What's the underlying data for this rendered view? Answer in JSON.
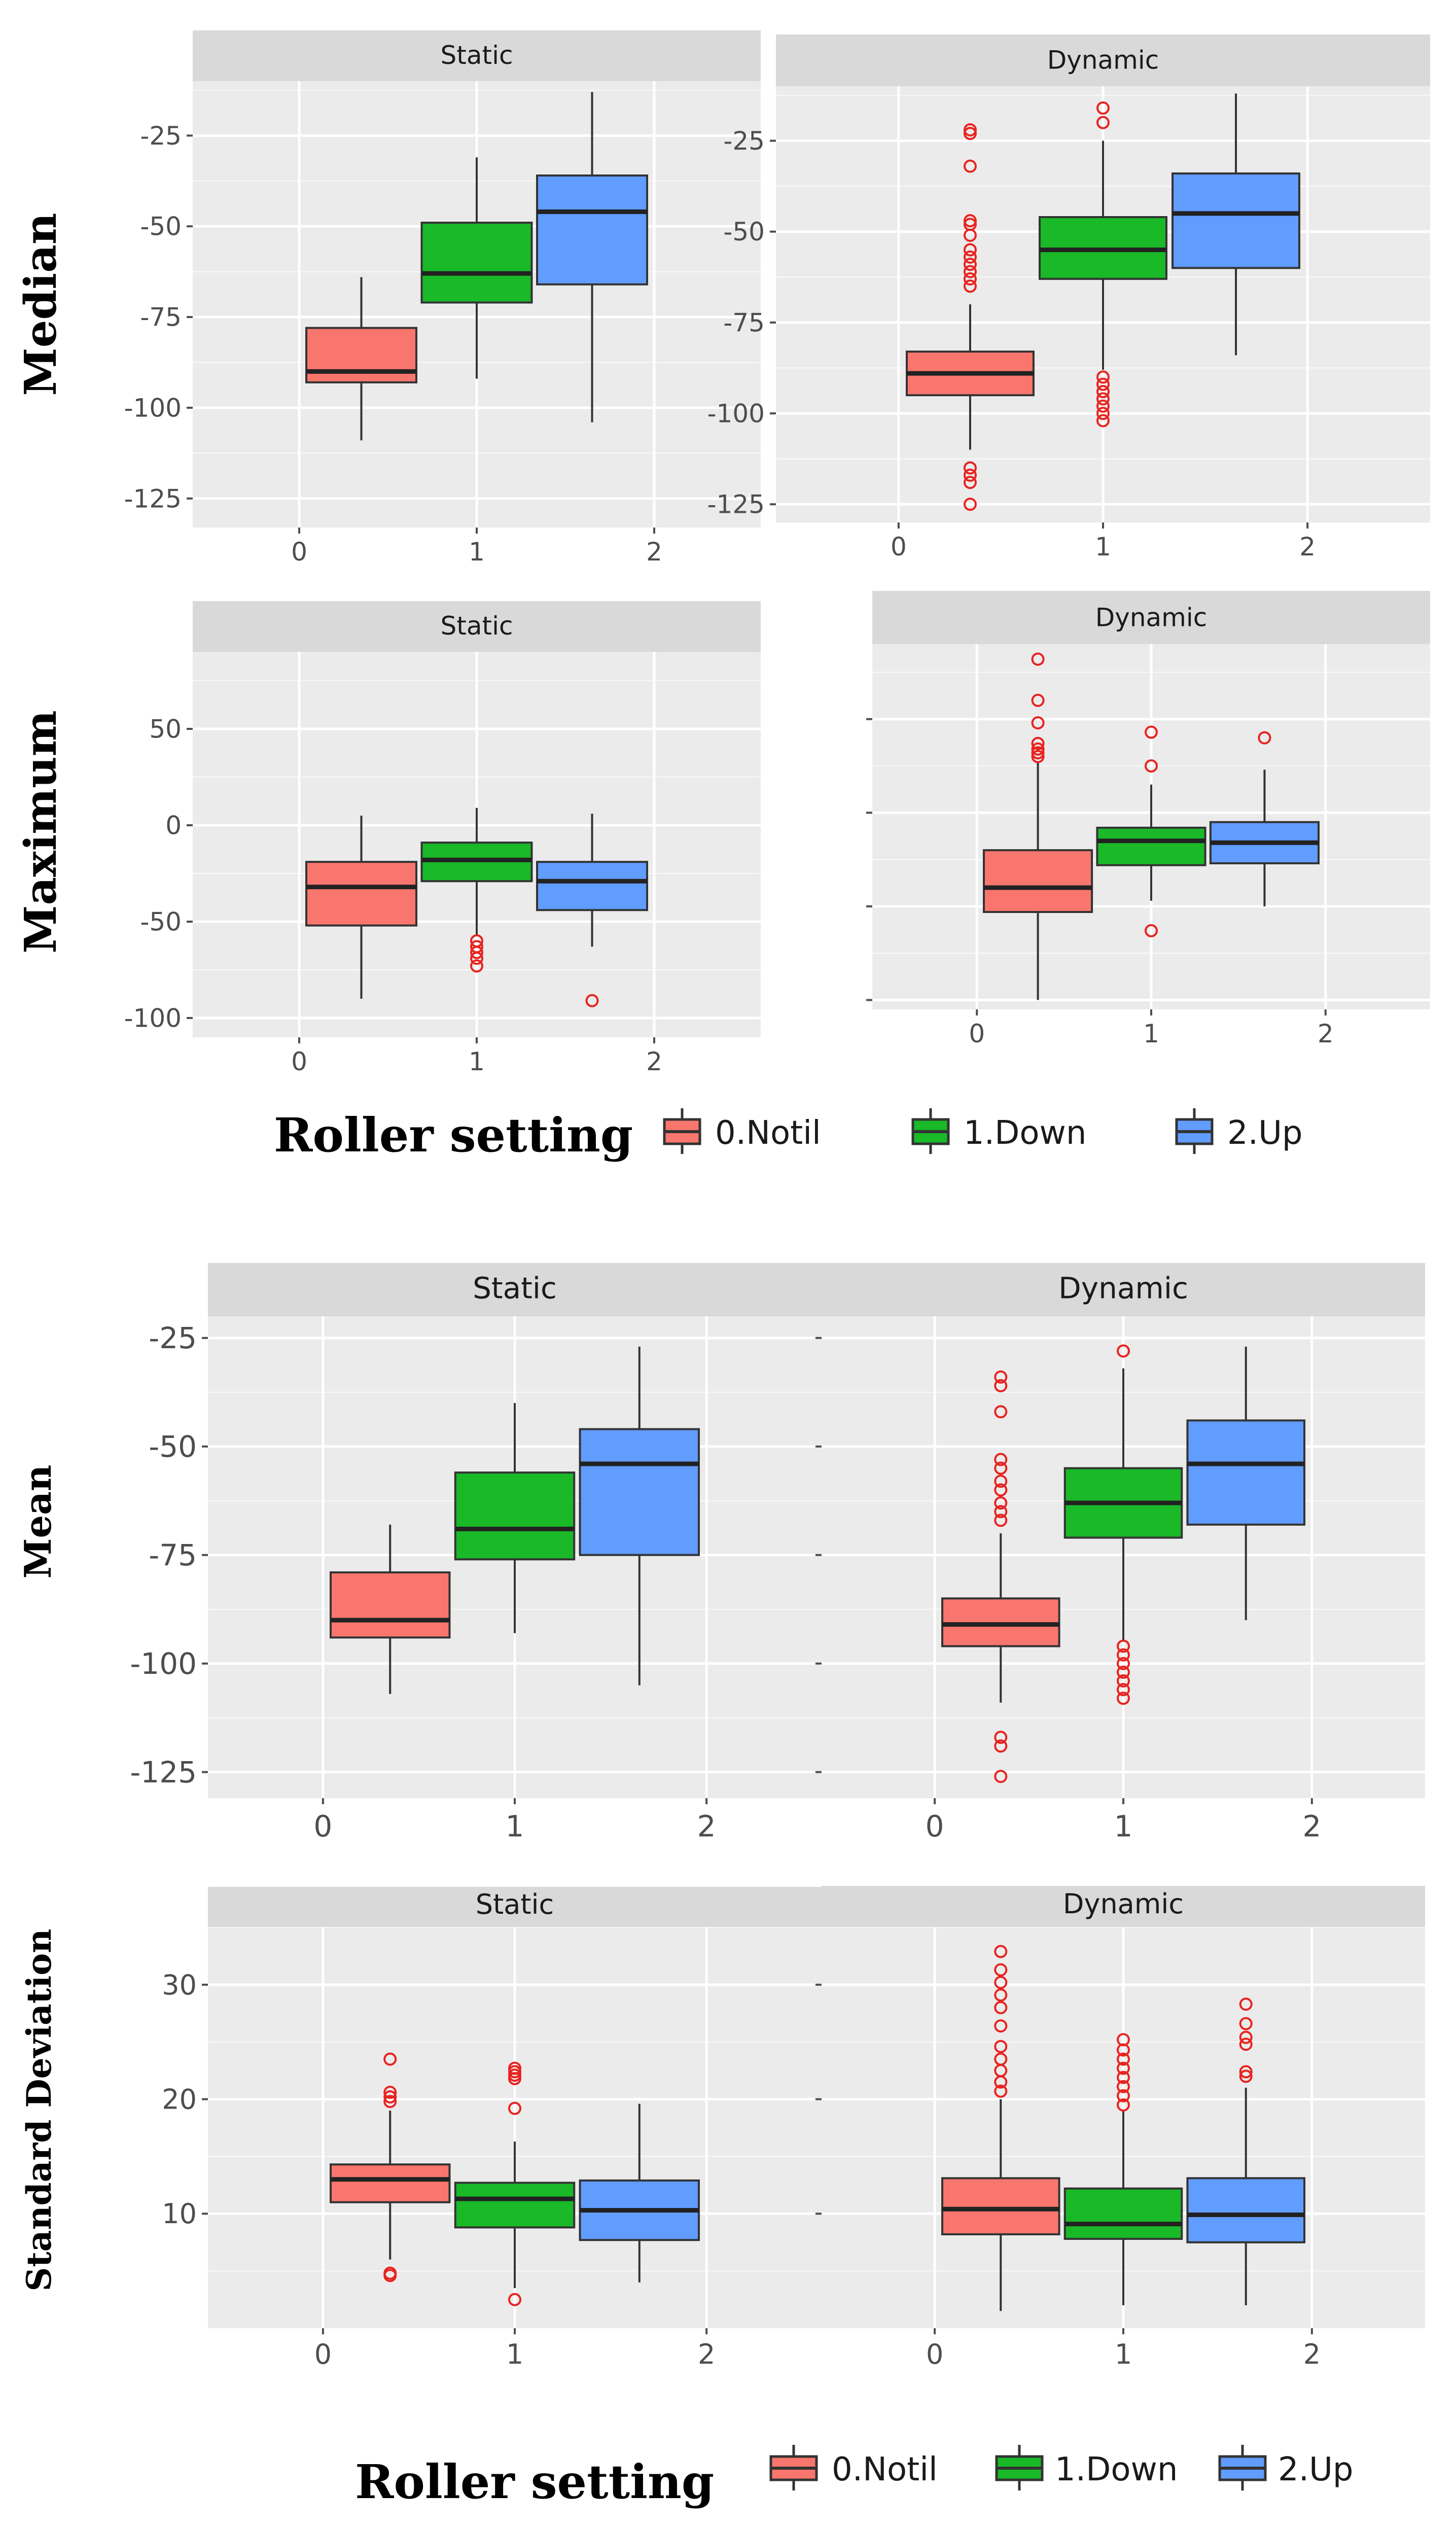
{
  "colors": {
    "panel_bg": "#ebebeb",
    "strip_bg": "#d9d9d9",
    "grid": "#ffffff",
    "outlier": "#e8231f",
    "box_outline": "#333333",
    "series": [
      "#f8766d",
      "#19b927",
      "#619cff"
    ]
  },
  "legend": {
    "title": "Roller setting",
    "entries": [
      "0.Notil",
      "1.Down",
      "2.Up"
    ]
  },
  "chart_data": [
    {
      "type": "boxplot",
      "ylabel": "Median",
      "facet": "Static",
      "x_ticks": [
        0,
        1,
        2
      ],
      "xlim": [
        -0.6,
        2.6
      ],
      "ylim": [
        -133,
        -10
      ],
      "y_ticks": [
        -25,
        -50,
        -75,
        -100,
        -125
      ],
      "y_tick_labels": true,
      "boxes": [
        {
          "x": 0.35,
          "min": -109,
          "q1": -93,
          "median": -90,
          "q3": -78,
          "max": -64,
          "outliers": []
        },
        {
          "x": 1.0,
          "min": -92,
          "q1": -71,
          "median": -63,
          "q3": -49,
          "max": -31,
          "outliers": []
        },
        {
          "x": 1.65,
          "min": -104,
          "q1": -66,
          "median": -46,
          "q3": -36,
          "max": -13,
          "outliers": []
        }
      ]
    },
    {
      "type": "boxplot",
      "ylabel": "Median",
      "facet": "Dynamic",
      "x_ticks": [
        0,
        1,
        2
      ],
      "xlim": [
        -0.6,
        2.6
      ],
      "ylim": [
        -130,
        -10
      ],
      "y_ticks": [
        -25,
        -50,
        -75,
        -100,
        -125
      ],
      "y_tick_labels": true,
      "boxes": [
        {
          "x": 0.35,
          "min": -110,
          "q1": -95,
          "median": -89,
          "q3": -83,
          "max": -70,
          "outliers": [
            -22,
            -23,
            -32,
            -47,
            -48,
            -51,
            -55,
            -57,
            -59,
            -61,
            -63,
            -65,
            -115,
            -117,
            -119,
            -125
          ]
        },
        {
          "x": 1.0,
          "min": -88,
          "q1": -63,
          "median": -55,
          "q3": -46,
          "max": -25,
          "outliers": [
            -16,
            -20,
            -90,
            -92,
            -94,
            -96,
            -98,
            -100,
            -102
          ]
        },
        {
          "x": 1.65,
          "min": -84,
          "q1": -60,
          "median": -45,
          "q3": -34,
          "max": -12,
          "outliers": []
        }
      ]
    },
    {
      "type": "boxplot",
      "ylabel": "Maximum",
      "facet": "Static",
      "x_ticks": [
        0,
        1,
        2
      ],
      "xlim": [
        -0.6,
        2.6
      ],
      "ylim": [
        -110,
        90
      ],
      "y_ticks": [
        50,
        0,
        -50,
        -100
      ],
      "y_tick_labels": true,
      "boxes": [
        {
          "x": 0.35,
          "min": -90,
          "q1": -52,
          "median": -32,
          "q3": -19,
          "max": 5,
          "outliers": []
        },
        {
          "x": 1.0,
          "min": -57,
          "q1": -29,
          "median": -18,
          "q3": -9,
          "max": 9,
          "outliers": [
            -60,
            -63,
            -66,
            -69,
            -73
          ]
        },
        {
          "x": 1.65,
          "min": -63,
          "q1": -44,
          "median": -29,
          "q3": -19,
          "max": 6,
          "outliers": [
            -91
          ]
        }
      ]
    },
    {
      "type": "boxplot",
      "ylabel": "Maximum",
      "facet": "Dynamic",
      "x_ticks": [
        0,
        1,
        2
      ],
      "xlim": [
        -0.6,
        2.6
      ],
      "ylim": [
        -105,
        90
      ],
      "y_ticks": [
        50,
        0,
        -50,
        -100
      ],
      "y_tick_labels": false,
      "boxes": [
        {
          "x": 0.35,
          "min": -100,
          "q1": -53,
          "median": -40,
          "q3": -20,
          "max": 27,
          "outliers": [
            30,
            32,
            34,
            37,
            48,
            60,
            82
          ]
        },
        {
          "x": 1.0,
          "min": -47,
          "q1": -28,
          "median": -15,
          "q3": -8,
          "max": 15,
          "outliers": [
            25,
            43,
            -63
          ]
        },
        {
          "x": 1.65,
          "min": -50,
          "q1": -27,
          "median": -16,
          "q3": -5,
          "max": 23,
          "outliers": [
            40
          ]
        }
      ]
    },
    {
      "type": "boxplot",
      "ylabel": "Mean",
      "facet": "Static",
      "x_ticks": [
        0,
        1,
        2
      ],
      "xlim": [
        -0.6,
        2.6
      ],
      "ylim": [
        -131,
        -20
      ],
      "y_ticks": [
        -25,
        -50,
        -75,
        -100,
        -125
      ],
      "y_tick_labels": true,
      "boxes": [
        {
          "x": 0.35,
          "min": -107,
          "q1": -94,
          "median": -90,
          "q3": -79,
          "max": -68,
          "outliers": []
        },
        {
          "x": 1.0,
          "min": -93,
          "q1": -76,
          "median": -69,
          "q3": -56,
          "max": -40,
          "outliers": []
        },
        {
          "x": 1.65,
          "min": -105,
          "q1": -75,
          "median": -54,
          "q3": -46,
          "max": -27,
          "outliers": []
        }
      ]
    },
    {
      "type": "boxplot",
      "ylabel": "Mean",
      "facet": "Dynamic",
      "x_ticks": [
        0,
        1,
        2
      ],
      "xlim": [
        -0.6,
        2.6
      ],
      "ylim": [
        -131,
        -20
      ],
      "y_ticks": [
        -25,
        -50,
        -75,
        -100,
        -125
      ],
      "y_tick_labels": false,
      "boxes": [
        {
          "x": 0.35,
          "min": -109,
          "q1": -96,
          "median": -91,
          "q3": -85,
          "max": -70,
          "outliers": [
            -34,
            -36,
            -42,
            -53,
            -55,
            -58,
            -60,
            -63,
            -65,
            -67,
            -117,
            -119,
            -126
          ]
        },
        {
          "x": 1.0,
          "min": -95,
          "q1": -71,
          "median": -63,
          "q3": -55,
          "max": -32,
          "outliers": [
            -28,
            -96,
            -98,
            -100,
            -102,
            -104,
            -106,
            -108
          ]
        },
        {
          "x": 1.65,
          "min": -90,
          "q1": -68,
          "median": -54,
          "q3": -44,
          "max": -27,
          "outliers": []
        }
      ]
    },
    {
      "type": "boxplot",
      "ylabel": "Standard Deviation",
      "facet": "Static",
      "x_ticks": [
        0,
        1,
        2
      ],
      "xlim": [
        -0.6,
        2.6
      ],
      "ylim": [
        0,
        35
      ],
      "y_ticks": [
        30,
        20,
        10
      ],
      "y_tick_labels": true,
      "boxes": [
        {
          "x": 0.35,
          "min": 6,
          "q1": 11,
          "median": 13,
          "q3": 14.3,
          "max": 19,
          "outliers": [
            4.6,
            4.8,
            19.8,
            20.2,
            20.6,
            23.5
          ]
        },
        {
          "x": 1.0,
          "min": 3.5,
          "q1": 8.8,
          "median": 11.3,
          "q3": 12.7,
          "max": 16.3,
          "outliers": [
            2.5,
            19.2,
            21.8,
            22.1,
            22.4,
            22.7
          ]
        },
        {
          "x": 1.65,
          "min": 4,
          "q1": 7.7,
          "median": 10.3,
          "q3": 12.9,
          "max": 19.6,
          "outliers": []
        }
      ]
    },
    {
      "type": "boxplot",
      "ylabel": "Standard Deviation",
      "facet": "Dynamic",
      "x_ticks": [
        0,
        1,
        2
      ],
      "xlim": [
        -0.6,
        2.6
      ],
      "ylim": [
        0,
        35
      ],
      "y_ticks": [
        30,
        20,
        10
      ],
      "y_tick_labels": false,
      "boxes": [
        {
          "x": 0.35,
          "min": 1.5,
          "q1": 8.2,
          "median": 10.4,
          "q3": 13.1,
          "max": 20,
          "outliers": [
            20.7,
            21.5,
            22.5,
            23.5,
            24.6,
            26.4,
            28,
            29.1,
            30.2,
            31.3,
            32.9
          ]
        },
        {
          "x": 1.0,
          "min": 2,
          "q1": 7.8,
          "median": 9.1,
          "q3": 12.2,
          "max": 19,
          "outliers": [
            19.5,
            20.3,
            21.1,
            21.9,
            22.7,
            23.5,
            24.3,
            25.2
          ]
        },
        {
          "x": 1.65,
          "min": 2,
          "q1": 7.5,
          "median": 9.9,
          "q3": 13.1,
          "max": 21,
          "outliers": [
            22,
            22.4,
            24.8,
            25.4,
            26.6,
            28.3
          ]
        }
      ]
    }
  ]
}
